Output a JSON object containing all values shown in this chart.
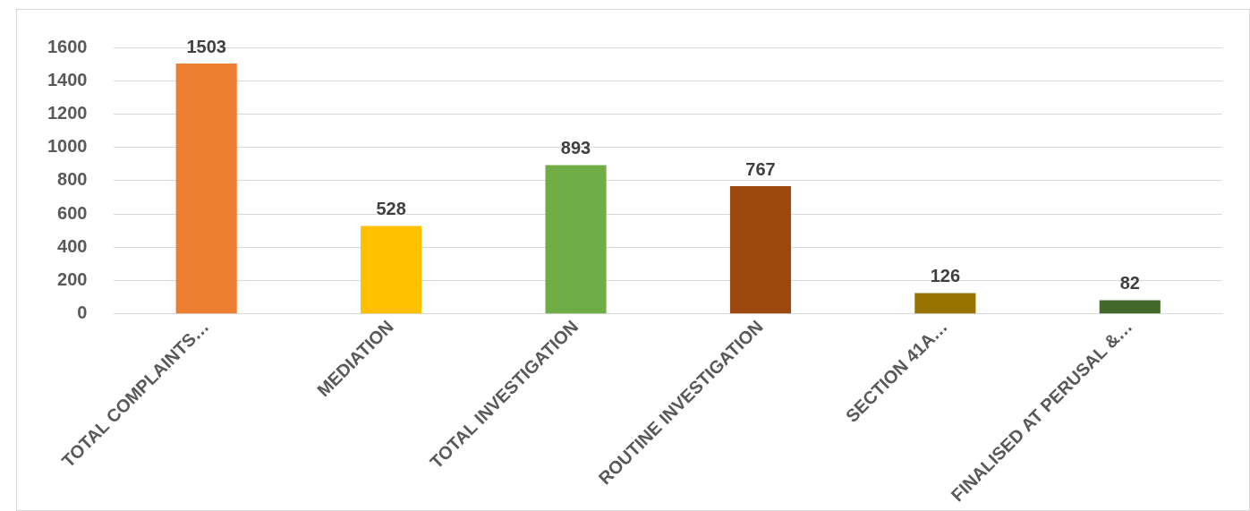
{
  "chart_data": {
    "type": "bar",
    "categories": [
      "TOTAL COMPLAINTS…",
      "MEDIATION",
      "TOTAL INVESTIGATION",
      "ROUTINE INVESTIGATION",
      "SECTION 41A…",
      "FINALISED AT PERUSAL &…"
    ],
    "values": [
      1503,
      528,
      893,
      767,
      126,
      82
    ],
    "colors": [
      "#ed7d31",
      "#ffc000",
      "#70ad47",
      "#9e480e",
      "#997300",
      "#43682b"
    ],
    "ylim": [
      0,
      1600
    ],
    "yticks": [
      0,
      200,
      400,
      600,
      800,
      1000,
      1200,
      1400,
      1600
    ],
    "grid": "y",
    "data_labels": true,
    "legend": false
  }
}
